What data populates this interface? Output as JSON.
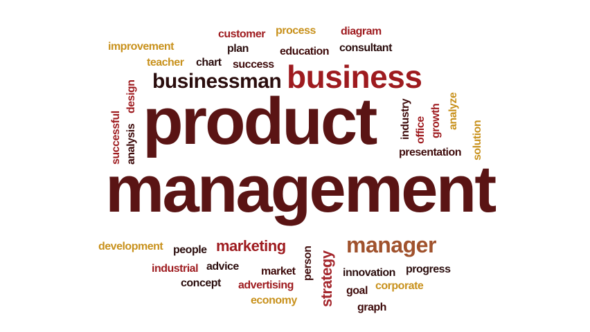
{
  "colors": {
    "gold": "#c8911c",
    "dark_red": "#9e1b1f",
    "red": "#a4262c",
    "brown": "#5a1414",
    "dark": "#3d0a0a",
    "black": "#2a0d0d",
    "orange": "#b8621b",
    "copper": "#a0522d"
  },
  "words": {
    "customer": "customer",
    "process": "process",
    "diagram": "diagram",
    "improvement": "improvement",
    "plan": "plan",
    "education": "education",
    "consultant": "consultant",
    "teacher": "teacher",
    "chart": "chart",
    "success": "success",
    "businessman": "businessman",
    "business": "business",
    "successful": "successful",
    "analysis": "analysis",
    "design": "design",
    "product": "product",
    "industry": "industry",
    "office": "office",
    "growth": "growth",
    "analyze": "analyze",
    "solution": "solution",
    "presentation": "presentation",
    "management": "management",
    "development": "development",
    "people": "people",
    "marketing": "marketing",
    "person": "person",
    "strategy": "strategy",
    "manager": "manager",
    "industrial": "industrial",
    "advice": "advice",
    "market": "market",
    "innovation": "innovation",
    "progress": "progress",
    "concept": "concept",
    "advertising": "advertising",
    "goal": "goal",
    "corporate": "corporate",
    "economy": "economy",
    "graph": "graph"
  }
}
